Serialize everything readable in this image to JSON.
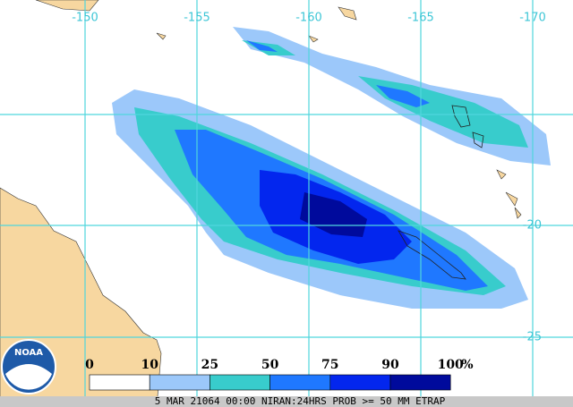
{
  "map": {
    "lon_labels": [
      "-150",
      "-155",
      "-160",
      "-165",
      "-170"
    ],
    "lat_labels": [
      "-20",
      "-25"
    ],
    "logo": "NOAA",
    "legend": {
      "labels": [
        "0",
        "10",
        "25",
        "50",
        "75",
        "90",
        "100"
      ],
      "unit": "%",
      "colors": [
        "#ffffff",
        "#9cc8fa",
        "#38cccc",
        "#1f78ff",
        "#0326ee",
        "#000a9c"
      ]
    },
    "footer": "5 MAR 21064 00:00 NIRAN:24HRS PROB >= 50 MM ETRAP"
  }
}
